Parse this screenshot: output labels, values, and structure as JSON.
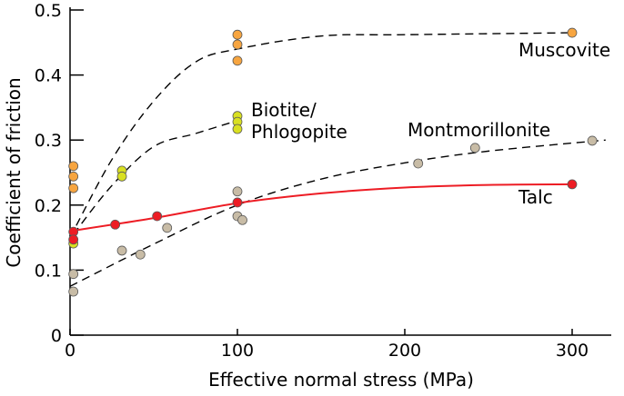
{
  "chart_data": {
    "type": "scatter",
    "title": "",
    "xlabel": "Effective normal stress (MPa)",
    "ylabel": "Coefficient of friction",
    "xlim": [
      0,
      320
    ],
    "ylim": [
      0,
      0.5
    ],
    "xticks": [
      "0",
      "100",
      "200",
      "300"
    ],
    "yticks": [
      "0",
      "0.1",
      "0.2",
      "0.3",
      "0.4",
      "0.5"
    ],
    "grid": false,
    "series": [
      {
        "name": "Muscovite",
        "color": "#f7a540",
        "line_style": "dashed",
        "points": [
          [
            2,
            0.26
          ],
          [
            2,
            0.244
          ],
          [
            2,
            0.226
          ],
          [
            100,
            0.462
          ],
          [
            100,
            0.447
          ],
          [
            100,
            0.422
          ],
          [
            300,
            0.465
          ]
        ],
        "trend": [
          [
            0,
            0.15
          ],
          [
            25,
            0.27
          ],
          [
            50,
            0.36
          ],
          [
            75,
            0.42
          ],
          [
            100,
            0.44
          ],
          [
            150,
            0.46
          ],
          [
            200,
            0.462
          ],
          [
            300,
            0.465
          ]
        ]
      },
      {
        "name": "Biotite/ Phlogopite",
        "label_lines": [
          "Biotite/",
          "Phlogopite"
        ],
        "color": "#d9e021",
        "line_style": "dashed",
        "points": [
          [
            2,
            0.141
          ],
          [
            31,
            0.253
          ],
          [
            31,
            0.244
          ],
          [
            100,
            0.337
          ],
          [
            100,
            0.328
          ],
          [
            100,
            0.317
          ]
        ],
        "trend": [
          [
            2,
            0.155
          ],
          [
            25,
            0.23
          ],
          [
            50,
            0.29
          ],
          [
            75,
            0.31
          ],
          [
            100,
            0.33
          ]
        ]
      },
      {
        "name": "Montmorillonite",
        "color": "#c8bca6",
        "line_style": "dashed",
        "points": [
          [
            2,
            0.094
          ],
          [
            2,
            0.067
          ],
          [
            31,
            0.13
          ],
          [
            42,
            0.124
          ],
          [
            58,
            0.165
          ],
          [
            100,
            0.221
          ],
          [
            100,
            0.183
          ],
          [
            103,
            0.177
          ],
          [
            208,
            0.264
          ],
          [
            242,
            0.288
          ],
          [
            312,
            0.299
          ]
        ],
        "trend": [
          [
            0,
            0.075
          ],
          [
            50,
            0.14
          ],
          [
            100,
            0.2
          ],
          [
            150,
            0.24
          ],
          [
            200,
            0.265
          ],
          [
            250,
            0.283
          ],
          [
            320,
            0.3
          ]
        ]
      },
      {
        "name": "Talc",
        "color": "#ed1c24",
        "line_style": "solid",
        "points": [
          [
            2,
            0.159
          ],
          [
            2,
            0.147
          ],
          [
            27,
            0.17
          ],
          [
            52,
            0.183
          ],
          [
            100,
            0.204
          ],
          [
            300,
            0.232
          ]
        ],
        "trend": [
          [
            0,
            0.16
          ],
          [
            50,
            0.18
          ],
          [
            100,
            0.203
          ],
          [
            150,
            0.218
          ],
          [
            200,
            0.227
          ],
          [
            250,
            0.231
          ],
          [
            300,
            0.232
          ]
        ]
      }
    ]
  }
}
